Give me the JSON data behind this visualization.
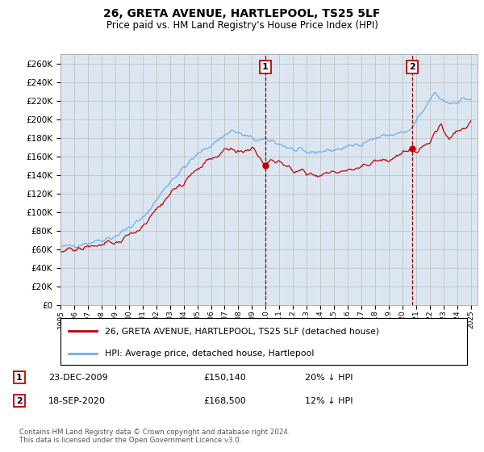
{
  "title": "26, GRETA AVENUE, HARTLEPOOL, TS25 5LF",
  "subtitle": "Price paid vs. HM Land Registry's House Price Index (HPI)",
  "yticks": [
    0,
    20000,
    40000,
    60000,
    80000,
    100000,
    120000,
    140000,
    160000,
    180000,
    200000,
    220000,
    240000,
    260000
  ],
  "ytick_labels": [
    "£0",
    "£20K",
    "£40K",
    "£60K",
    "£80K",
    "£100K",
    "£120K",
    "£140K",
    "£160K",
    "£180K",
    "£200K",
    "£220K",
    "£240K",
    "£260K"
  ],
  "ylim_min": 0,
  "ylim_max": 270000,
  "xlim_start": 1995.0,
  "xlim_end": 2025.5,
  "sale1_date": 2009.97,
  "sale1_price": 150140,
  "sale2_date": 2020.72,
  "sale2_price": 168500,
  "legend_red": "26, GRETA AVENUE, HARTLEPOOL, TS25 5LF (detached house)",
  "legend_blue": "HPI: Average price, detached house, Hartlepool",
  "row1_num": "1",
  "row1_date": "23-DEC-2009",
  "row1_price": "£150,140",
  "row1_hpi": "20% ↓ HPI",
  "row2_num": "2",
  "row2_date": "18-SEP-2020",
  "row2_price": "£168,500",
  "row2_hpi": "12% ↓ HPI",
  "footer": "Contains HM Land Registry data © Crown copyright and database right 2024.\nThis data is licensed under the Open Government Licence v3.0.",
  "hpi_color": "#6aaee8",
  "price_color": "#c00000",
  "vline_color": "#8b0000",
  "bg_color": "#dce6f1",
  "plot_bg": "#ffffff",
  "grid_color": "#bbbbbb",
  "hpi_anchors_t": [
    1995.0,
    1997.0,
    1999.0,
    2001.0,
    2003.0,
    2005.0,
    2007.5,
    2008.5,
    2009.5,
    2010.5,
    2012.0,
    2013.0,
    2015.0,
    2016.0,
    2017.5,
    2018.5,
    2019.5,
    2020.5,
    2021.5,
    2022.3,
    2022.8,
    2023.5,
    2024.5
  ],
  "hpi_anchors_p": [
    62000,
    67000,
    74000,
    93000,
    133000,
    162000,
    188000,
    182000,
    177000,
    177000,
    167000,
    164000,
    167000,
    170000,
    177000,
    182000,
    184000,
    187000,
    208000,
    228000,
    222000,
    217000,
    222000
  ],
  "red_anchors_t": [
    1995.0,
    1997.0,
    1999.0,
    2001.0,
    2003.0,
    2005.0,
    2007.0,
    2008.5,
    2009.0,
    2009.97,
    2010.5,
    2011.5,
    2012.0,
    2013.0,
    2014.0,
    2015.0,
    2016.0,
    2017.0,
    2018.0,
    2019.0,
    2020.72,
    2021.0,
    2021.5,
    2022.0,
    2022.5,
    2022.8,
    2023.0,
    2023.5,
    2024.0,
    2024.5,
    2025.0
  ],
  "red_anchors_p": [
    58000,
    62000,
    67000,
    84000,
    120000,
    147000,
    167000,
    165000,
    167000,
    150140,
    157000,
    150000,
    145000,
    142000,
    140000,
    142000,
    145000,
    150000,
    155000,
    157000,
    168500,
    166000,
    170000,
    177000,
    187000,
    194000,
    187000,
    180000,
    185000,
    190000,
    197000
  ]
}
